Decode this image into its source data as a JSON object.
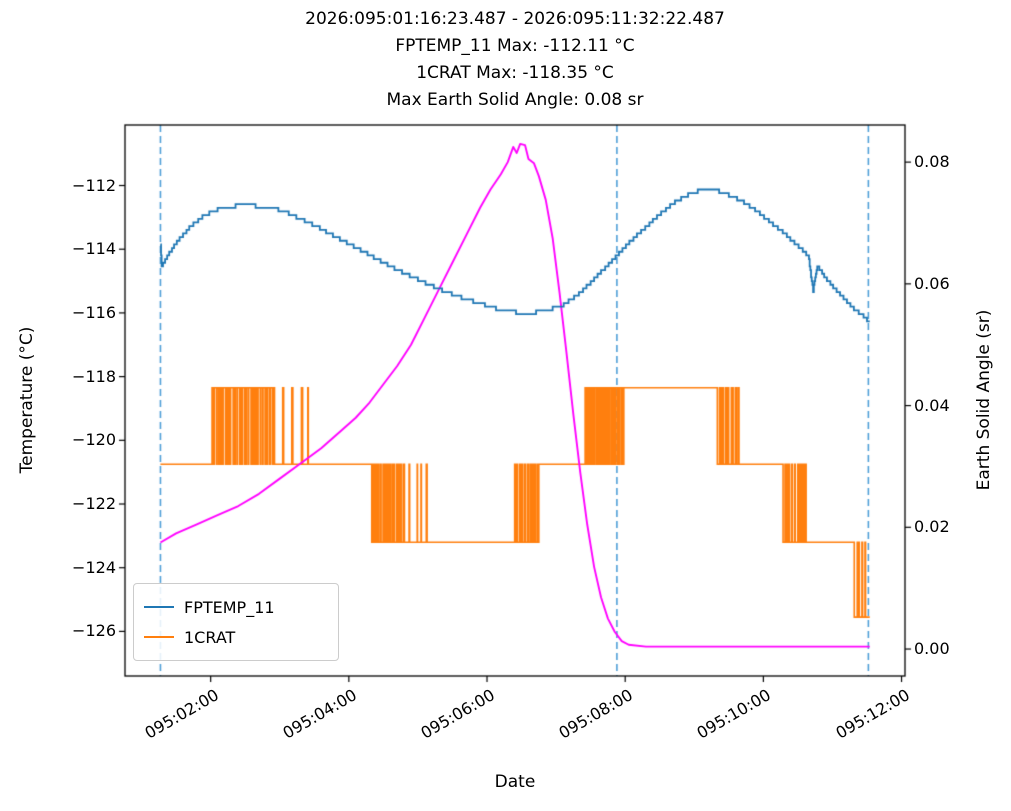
{
  "title_lines": [
    "2026:095:01:16:23.487 - 2026:095:11:32:22.487",
    "FPTEMP_11 Max: -112.11 °C",
    "1CRAT Max: -118.35 °C",
    "Max Earth Solid Angle: 0.08 sr"
  ],
  "axes": {
    "x_label": "Date",
    "y_left_label": "Temperature (°C)",
    "y_right_label": "Earth Solid Angle (sr)"
  },
  "legend": {
    "entries": [
      {
        "label": "FPTEMP_11",
        "color": "#1f77b4"
      },
      {
        "label": "1CRAT",
        "color": "#ff7f0e"
      }
    ]
  },
  "chart_data": {
    "type": "line",
    "x_unit": "hours of day 095",
    "xlim": [
      0.76,
      12.05
    ],
    "ylim_left": [
      -127.4,
      -110.1
    ],
    "ylim_right": [
      -0.00443,
      0.0861
    ],
    "grid": false,
    "x_ticks": [
      {
        "value": 2,
        "label": "095:02:00"
      },
      {
        "value": 4,
        "label": "095:04:00"
      },
      {
        "value": 6,
        "label": "095:06:00"
      },
      {
        "value": 8,
        "label": "095:08:00"
      },
      {
        "value": 10,
        "label": "095:10:00"
      },
      {
        "value": 12,
        "label": "095:12:00"
      }
    ],
    "y_left_ticks": [
      {
        "value": -126,
        "label": "−126"
      },
      {
        "value": -124,
        "label": "−124"
      },
      {
        "value": -122,
        "label": "−122"
      },
      {
        "value": -120,
        "label": "−120"
      },
      {
        "value": -118,
        "label": "−118"
      },
      {
        "value": -116,
        "label": "−116"
      },
      {
        "value": -114,
        "label": "−114"
      },
      {
        "value": -112,
        "label": "−112"
      }
    ],
    "y_right_ticks": [
      {
        "value": 0.0,
        "label": "0.00"
      },
      {
        "value": 0.02,
        "label": "0.02"
      },
      {
        "value": 0.04,
        "label": "0.04"
      },
      {
        "value": 0.06,
        "label": "0.06"
      },
      {
        "value": 0.08,
        "label": "0.08"
      }
    ],
    "vlines": {
      "x": [
        1.2732,
        7.88,
        11.52
      ],
      "color": "#4f9fd8",
      "style": "dashed"
    },
    "series": [
      {
        "name": "FPTEMP_11",
        "axis": "left",
        "color": "#1f77b4",
        "style": "quantized-step",
        "quantize_step": 0.115,
        "x": [
          1.273,
          1.29,
          1.35,
          1.5,
          1.7,
          1.9,
          2.1,
          2.3,
          2.5,
          2.7,
          2.9,
          3.1,
          3.3,
          3.5,
          3.8,
          4.1,
          4.4,
          4.7,
          5.0,
          5.3,
          5.6,
          5.9,
          6.1,
          6.3,
          6.5,
          6.7,
          6.9,
          7.1,
          7.3,
          7.5,
          7.7,
          7.9,
          8.1,
          8.3,
          8.5,
          8.7,
          8.9,
          9.05,
          9.2,
          9.35,
          9.5,
          9.7,
          9.9,
          10.1,
          10.3,
          10.5,
          10.65,
          10.72,
          10.78,
          10.9,
          11.1,
          11.3,
          11.45,
          11.54
        ],
        "y": [
          -113.9,
          -114.55,
          -114.3,
          -113.8,
          -113.3,
          -112.95,
          -112.75,
          -112.65,
          -112.62,
          -112.65,
          -112.7,
          -112.85,
          -113.05,
          -113.25,
          -113.6,
          -113.95,
          -114.3,
          -114.65,
          -114.95,
          -115.25,
          -115.5,
          -115.7,
          -115.85,
          -115.95,
          -116.0,
          -115.98,
          -115.9,
          -115.75,
          -115.45,
          -115.05,
          -114.6,
          -114.15,
          -113.7,
          -113.3,
          -112.9,
          -112.55,
          -112.3,
          -112.18,
          -112.12,
          -112.18,
          -112.3,
          -112.5,
          -112.8,
          -113.15,
          -113.5,
          -113.9,
          -114.2,
          -115.3,
          -114.5,
          -114.9,
          -115.4,
          -115.85,
          -116.1,
          -116.3
        ]
      },
      {
        "name": "1CRAT",
        "axis": "left",
        "color": "#ff7f0e",
        "style": "telemetry-steps",
        "levels": [
          -118.35,
          -120.75,
          -123.2,
          -125.55
        ],
        "segments": [
          {
            "t0": 1.273,
            "t1": 2.02,
            "type": "flat",
            "level": -120.75
          },
          {
            "t0": 2.02,
            "t1": 2.92,
            "type": "toggle",
            "hi": -118.35,
            "lo": -120.75,
            "duty": 0.78,
            "period": 0.03
          },
          {
            "t0": 2.92,
            "t1": 3.45,
            "type": "toggle",
            "hi": -118.35,
            "lo": -120.75,
            "duty": 0.12,
            "period": 0.09
          },
          {
            "t0": 3.45,
            "t1": 4.32,
            "type": "flat",
            "level": -120.75
          },
          {
            "t0": 4.32,
            "t1": 4.8,
            "type": "toggle",
            "hi": -120.75,
            "lo": -123.2,
            "duty": 0.35,
            "period": 0.03
          },
          {
            "t0": 4.8,
            "t1": 5.15,
            "type": "toggle",
            "hi": -120.75,
            "lo": -123.2,
            "duty": 0.1,
            "period": 0.08
          },
          {
            "t0": 5.15,
            "t1": 6.4,
            "type": "flat",
            "level": -123.2
          },
          {
            "t0": 6.4,
            "t1": 6.75,
            "type": "toggle",
            "hi": -120.75,
            "lo": -123.2,
            "duty": 0.45,
            "period": 0.035
          },
          {
            "t0": 6.75,
            "t1": 7.42,
            "type": "flat",
            "level": -120.75
          },
          {
            "t0": 7.42,
            "t1": 7.98,
            "type": "toggle",
            "hi": -118.35,
            "lo": -120.75,
            "duty": 0.55,
            "period": 0.03
          },
          {
            "t0": 7.98,
            "t1": 9.32,
            "type": "flat",
            "level": -118.35
          },
          {
            "t0": 9.32,
            "t1": 9.66,
            "type": "toggle",
            "hi": -118.35,
            "lo": -120.75,
            "duty": 0.3,
            "period": 0.035
          },
          {
            "t0": 9.66,
            "t1": 10.28,
            "type": "flat",
            "level": -120.75
          },
          {
            "t0": 10.28,
            "t1": 10.62,
            "type": "toggle",
            "hi": -120.75,
            "lo": -123.2,
            "duty": 0.3,
            "period": 0.035
          },
          {
            "t0": 10.62,
            "t1": 11.3,
            "type": "flat",
            "level": -123.2
          },
          {
            "t0": 11.3,
            "t1": 11.5,
            "type": "toggle",
            "hi": -123.2,
            "lo": -125.55,
            "duty": 0.3,
            "period": 0.04
          },
          {
            "t0": 11.5,
            "t1": 11.54,
            "type": "flat",
            "level": -125.55
          }
        ]
      },
      {
        "name": "Earth Solid Angle",
        "axis": "right",
        "color": "#ff00ff",
        "style": "line",
        "x": [
          1.273,
          1.5,
          1.8,
          2.1,
          2.4,
          2.7,
          3.0,
          3.3,
          3.6,
          3.9,
          4.1,
          4.3,
          4.5,
          4.7,
          4.9,
          5.1,
          5.3,
          5.5,
          5.7,
          5.9,
          6.05,
          6.2,
          6.3,
          6.38,
          6.43,
          6.48,
          6.55,
          6.6,
          6.68,
          6.75,
          6.85,
          6.95,
          7.05,
          7.15,
          7.25,
          7.35,
          7.45,
          7.55,
          7.65,
          7.75,
          7.85,
          7.95,
          8.05,
          8.3,
          9.0,
          10.0,
          11.0,
          11.54
        ],
        "y": [
          0.0175,
          0.019,
          0.0205,
          0.022,
          0.0235,
          0.0255,
          0.028,
          0.0305,
          0.033,
          0.036,
          0.038,
          0.0405,
          0.0435,
          0.0465,
          0.05,
          0.0545,
          0.059,
          0.0635,
          0.068,
          0.0725,
          0.0755,
          0.078,
          0.08,
          0.0825,
          0.0815,
          0.083,
          0.0828,
          0.0805,
          0.0798,
          0.0777,
          0.0738,
          0.0675,
          0.0585,
          0.0487,
          0.0385,
          0.029,
          0.0205,
          0.0135,
          0.0085,
          0.005,
          0.0028,
          0.0013,
          0.0007,
          0.0004,
          0.0004,
          0.0004,
          0.0004,
          0.0004
        ]
      }
    ]
  }
}
